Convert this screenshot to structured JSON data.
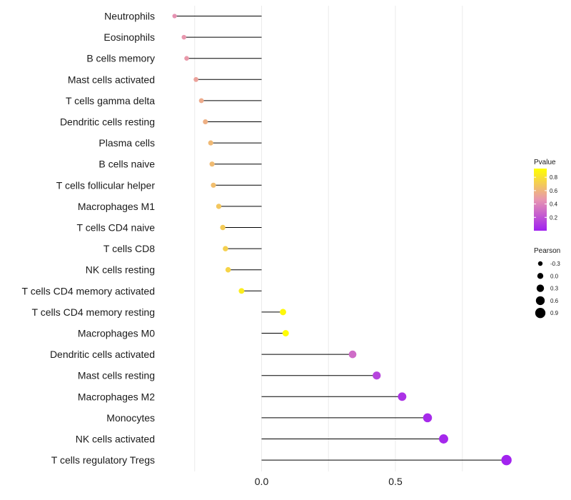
{
  "chart_data": {
    "type": "lollipop",
    "title": "",
    "xlabel": "",
    "ylabel": "",
    "xlim": [
      -0.33,
      0.92
    ],
    "x_ticks": [
      {
        "value": 0.0,
        "label": "0.0"
      },
      {
        "value": 0.5,
        "label": "0.5"
      }
    ],
    "minor_grid": [
      -0.25,
      0.25,
      0.75
    ],
    "categories": [
      "Neutrophils",
      "Eosinophils",
      "B cells memory",
      "Mast cells activated",
      "T cells gamma delta",
      "Dendritic cells resting",
      "Plasma cells",
      "B cells naive",
      "T cells follicular helper",
      "Macrophages M1",
      "T cells CD4 naive",
      "T cells CD8",
      "NK cells resting",
      "T cells CD4 memory activated",
      "T cells CD4 memory resting",
      "Macrophages M0",
      "Dendritic cells activated",
      "Mast cells resting",
      "Macrophages M2",
      "Monocytes",
      "NK cells activated",
      "T cells regulatory  Tregs"
    ],
    "pearson": [
      -0.325,
      -0.29,
      -0.28,
      -0.245,
      -0.225,
      -0.21,
      -0.19,
      -0.185,
      -0.18,
      -0.16,
      -0.145,
      -0.135,
      -0.125,
      -0.075,
      0.08,
      0.09,
      0.34,
      0.43,
      0.525,
      0.62,
      0.68,
      0.915
    ],
    "pvalue": [
      0.45,
      0.47,
      0.48,
      0.52,
      0.56,
      0.58,
      0.62,
      0.63,
      0.64,
      0.68,
      0.7,
      0.72,
      0.74,
      0.85,
      0.9,
      0.92,
      0.3,
      0.14,
      0.07,
      0.04,
      0.03,
      0.01
    ],
    "color_legend": {
      "title": "Pvalue",
      "ticks": [
        "0.8",
        "0.6",
        "0.4",
        "0.2"
      ],
      "tick_values": [
        0.8,
        0.6,
        0.4,
        0.2
      ],
      "range": [
        0.0,
        0.93
      ],
      "low_color": "#a020f0",
      "mid_color": "#e896b0",
      "high_color": "#ffff00"
    },
    "size_legend": {
      "title": "Pearson",
      "entries": [
        "-0.3",
        "0.0",
        "0.3",
        "0.6",
        "0.9"
      ],
      "entry_values": [
        -0.3,
        0.0,
        0.3,
        0.6,
        0.9
      ]
    },
    "legend_position": "right"
  }
}
